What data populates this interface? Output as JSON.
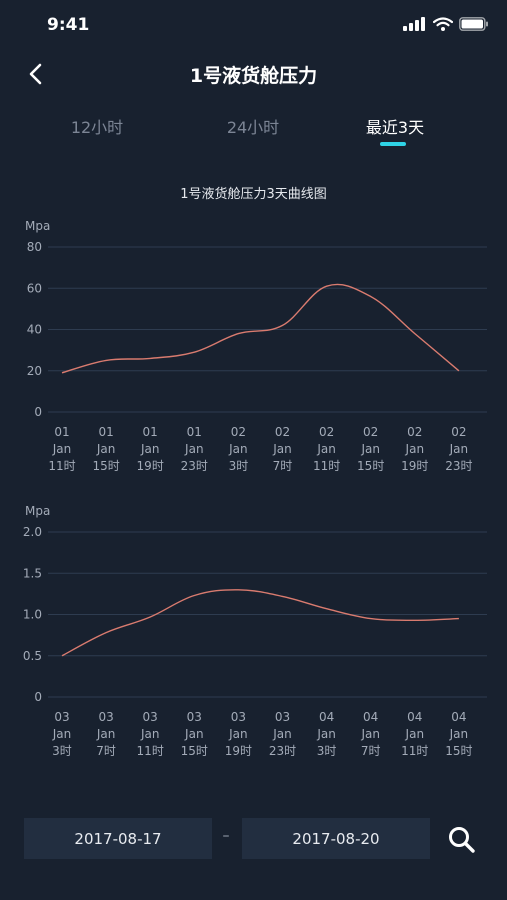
{
  "status": {
    "time": "9:41"
  },
  "header": {
    "title": "1号液货舱压力"
  },
  "tabs": [
    {
      "label": "12小时",
      "active": false
    },
    {
      "label": "24小时",
      "active": false
    },
    {
      "label": "最近3天",
      "active": true
    }
  ],
  "colors": {
    "background": "#18212f",
    "accent": "#2fd3e6",
    "line": "#d97b6f",
    "grid": "#2e3c50",
    "axis_text": "#a3abb8"
  },
  "chart_data": [
    {
      "type": "line",
      "title": "1号液货舱压力3天曲线图",
      "ylabel": "Mpa",
      "ylim": [
        0,
        80
      ],
      "yticks": [
        "0",
        "20",
        "40",
        "60",
        "80"
      ],
      "categories": [
        [
          "01",
          "Jan",
          "11时"
        ],
        [
          "01",
          "Jan",
          "15时"
        ],
        [
          "01",
          "Jan",
          "19时"
        ],
        [
          "01",
          "Jan",
          "23时"
        ],
        [
          "02",
          "Jan",
          "3时"
        ],
        [
          "02",
          "Jan",
          "7时"
        ],
        [
          "02",
          "Jan",
          "11时"
        ],
        [
          "02",
          "Jan",
          "15时"
        ],
        [
          "02",
          "Jan",
          "19时"
        ],
        [
          "02",
          "Jan",
          "23时"
        ]
      ],
      "series": [
        {
          "values": [
            19,
            25,
            26,
            29,
            38,
            42,
            61,
            56,
            38,
            20
          ]
        }
      ]
    },
    {
      "type": "line",
      "title": "",
      "ylabel": "Mpa",
      "ylim": [
        0,
        2.0
      ],
      "yticks": [
        "0",
        "0.5",
        "1.0",
        "1.5",
        "2.0"
      ],
      "categories": [
        [
          "03",
          "Jan",
          "3时"
        ],
        [
          "03",
          "Jan",
          "7时"
        ],
        [
          "03",
          "Jan",
          "11时"
        ],
        [
          "03",
          "Jan",
          "15时"
        ],
        [
          "03",
          "Jan",
          "19时"
        ],
        [
          "03",
          "Jan",
          "23时"
        ],
        [
          "04",
          "Jan",
          "3时"
        ],
        [
          "04",
          "Jan",
          "7时"
        ],
        [
          "04",
          "Jan",
          "11时"
        ],
        [
          "04",
          "Jan",
          "15时"
        ]
      ],
      "series": [
        {
          "values": [
            0.5,
            0.78,
            0.97,
            1.23,
            1.3,
            1.22,
            1.07,
            0.95,
            0.93,
            0.95
          ]
        }
      ]
    }
  ],
  "date_range": {
    "start": "2017-08-17",
    "separator": "–",
    "end": "2017-08-20"
  }
}
